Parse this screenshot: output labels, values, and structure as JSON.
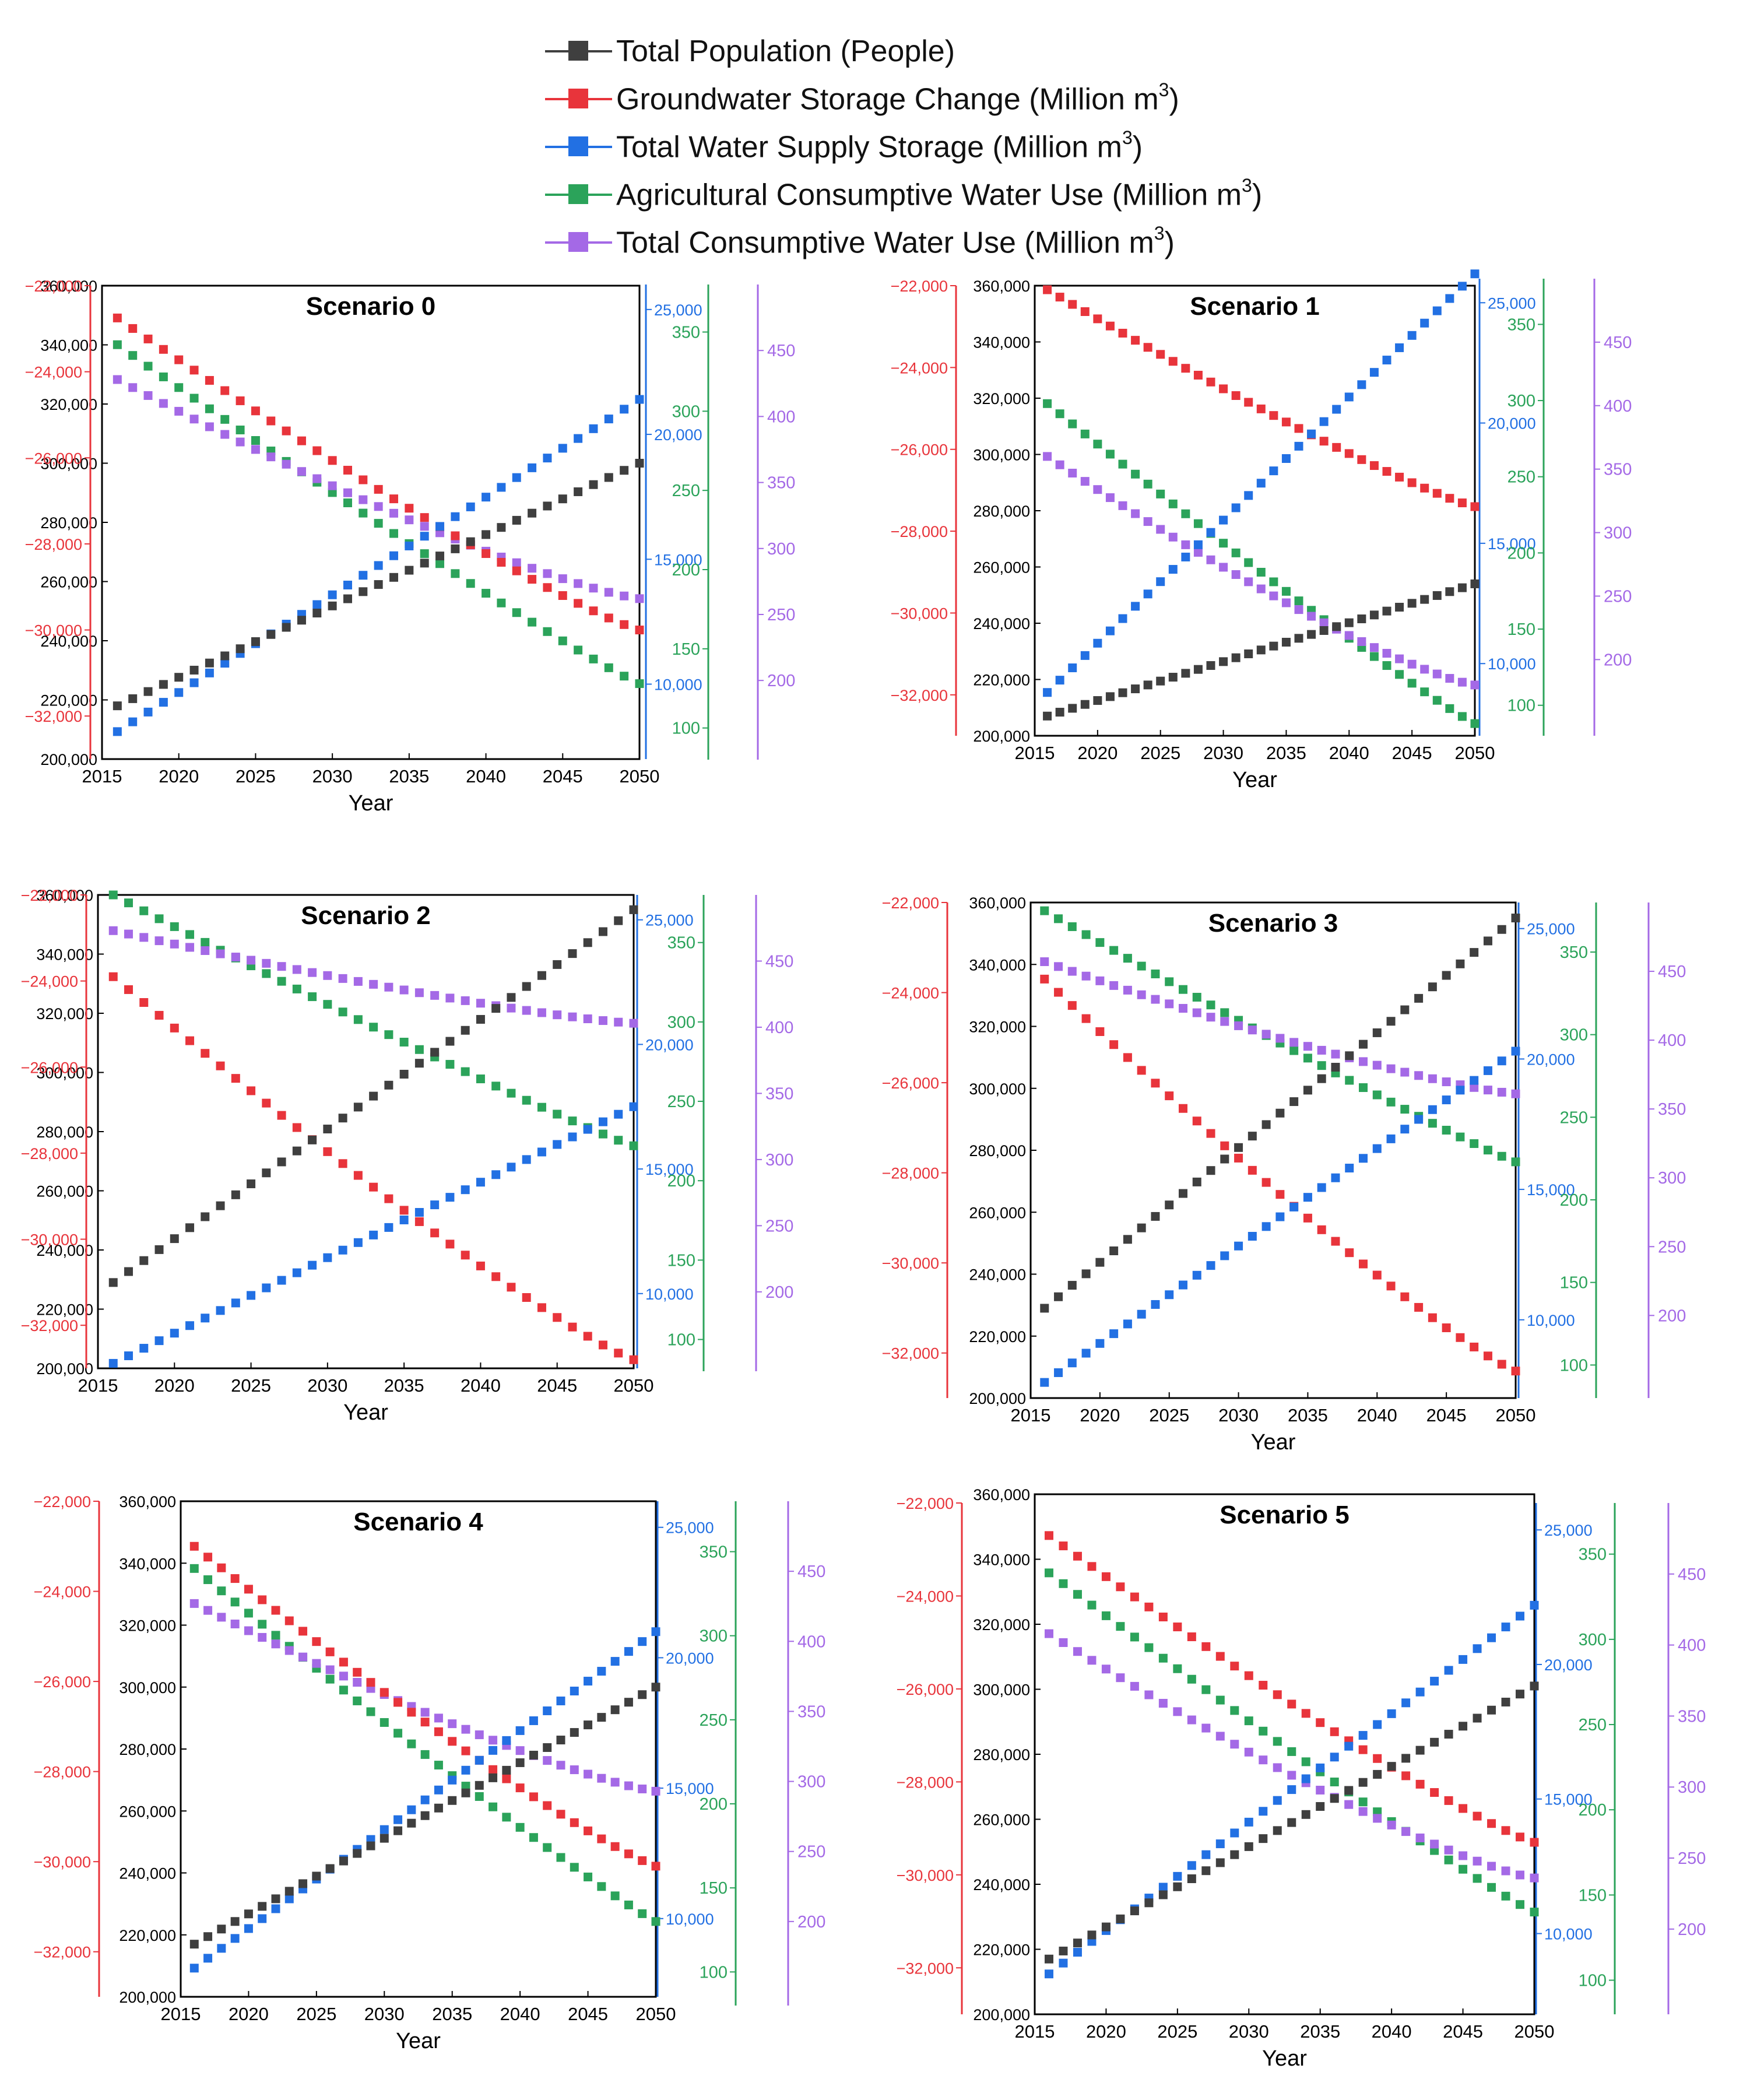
{
  "colors": {
    "population": "#3f3f3f",
    "groundwater": "#e8343b",
    "supply": "#2270e3",
    "agricultural": "#2ba35a",
    "consumptive": "#a469e6",
    "frame": "#000000"
  },
  "legend": [
    {
      "key": "population",
      "label": "Total Population (People)",
      "superscript": ""
    },
    {
      "key": "groundwater",
      "label": "Groundwater Storage Change (Million m",
      "superscript": "3",
      "suffix": ")"
    },
    {
      "key": "supply",
      "label": "Total Water Supply Storage (Million m",
      "superscript": "3",
      "suffix": ")"
    },
    {
      "key": "agricultural",
      "label": "Agricultural Consumptive Water Use (Million m",
      "superscript": "3",
      "suffix": ")"
    },
    {
      "key": "consumptive",
      "label": "Total Consumptive Water Use (Million m",
      "superscript": "3",
      "suffix": ")"
    }
  ],
  "chart_data": [
    {
      "type": "scatter",
      "title": "Scenario 0",
      "xlabel": "Year",
      "xlim": [
        2015,
        2050
      ],
      "x_ticks": [
        "2015",
        "2020",
        "2025",
        "2030",
        "2035",
        "2040",
        "2045",
        "2050"
      ],
      "axes": {
        "groundwater": {
          "range": [
            -33000,
            -22000
          ],
          "ticks": [
            "−22,000",
            "−24,000",
            "−26,000",
            "−28,000",
            "−30,000",
            "−32,000"
          ]
        },
        "population": {
          "range": [
            200000,
            360000
          ],
          "ticks": [
            "360,000",
            "340,000",
            "320,000",
            "300,000",
            "280,000",
            "260,000",
            "240,000",
            "220,000",
            "200,000"
          ]
        },
        "supply": {
          "range": [
            7000,
            26000
          ],
          "ticks": [
            "25,000",
            "20,000",
            "15,000",
            "10,000"
          ]
        },
        "agricultural": {
          "range": [
            80,
            380
          ],
          "ticks": [
            "350",
            "300",
            "250",
            "200",
            "150",
            "100"
          ]
        },
        "consumptive": {
          "range": [
            140,
            500
          ],
          "ticks": [
            "450",
            "400",
            "350",
            "300",
            "250",
            "200"
          ]
        }
      },
      "series": [
        {
          "key": "population",
          "start": 218000,
          "end": 300000
        },
        {
          "key": "groundwater",
          "start": -22750,
          "end": -30000
        },
        {
          "key": "supply",
          "start": 8100,
          "end": 21400
        },
        {
          "key": "agricultural",
          "start": 342,
          "end": 128
        },
        {
          "key": "consumptive",
          "start": 428,
          "end": 262
        }
      ]
    },
    {
      "type": "scatter",
      "title": "Scenario 1",
      "xlabel": "Year",
      "xlim": [
        2015,
        2050
      ],
      "x_ticks": [
        "2015",
        "2020",
        "2025",
        "2030",
        "2035",
        "2040",
        "2045",
        "2050"
      ],
      "axes": {
        "groundwater": {
          "range": [
            -33000,
            -22000
          ],
          "ticks": [
            "−22,000",
            "−24,000",
            "−26,000",
            "−28,000",
            "−30,000",
            "−32,000"
          ]
        },
        "population": {
          "range": [
            200000,
            360000
          ],
          "ticks": [
            "360,000",
            "340,000",
            "320,000",
            "300,000",
            "280,000",
            "260,000",
            "240,000",
            "220,000",
            "200,000"
          ]
        },
        "supply": {
          "range": [
            7000,
            26000
          ],
          "ticks": [
            "25,000",
            "20,000",
            "15,000",
            "10,000"
          ]
        },
        "agricultural": {
          "range": [
            80,
            380
          ],
          "ticks": [
            "350",
            "300",
            "250",
            "200",
            "150",
            "100"
          ]
        },
        "consumptive": {
          "range": [
            140,
            500
          ],
          "ticks": [
            "450",
            "400",
            "350",
            "300",
            "250",
            "200"
          ]
        }
      },
      "series": [
        {
          "key": "population",
          "start": 207000,
          "end": 254000
        },
        {
          "key": "groundwater",
          "start": -22100,
          "end": -27400
        },
        {
          "key": "supply",
          "start": 8800,
          "end": 26200
        },
        {
          "key": "agricultural",
          "start": 298,
          "end": 88
        },
        {
          "key": "consumptive",
          "start": 360,
          "end": 180
        }
      ]
    },
    {
      "type": "scatter",
      "title": "Scenario 2",
      "xlabel": "Year",
      "xlim": [
        2015,
        2050
      ],
      "x_ticks": [
        "2015",
        "2020",
        "2025",
        "2030",
        "2035",
        "2040",
        "2045",
        "2050"
      ],
      "axes": {
        "groundwater": {
          "range": [
            -33000,
            -22000
          ],
          "ticks": [
            "−22,000",
            "−24,000",
            "−26,000",
            "−28,000",
            "−30,000",
            "−32,000"
          ]
        },
        "population": {
          "range": [
            200000,
            360000
          ],
          "ticks": [
            "360,000",
            "340,000",
            "320,000",
            "300,000",
            "280,000",
            "260,000",
            "240,000",
            "220,000",
            "200,000"
          ]
        },
        "supply": {
          "range": [
            7000,
            26000
          ],
          "ticks": [
            "25,000",
            "20,000",
            "15,000",
            "10,000"
          ]
        },
        "agricultural": {
          "range": [
            80,
            380
          ],
          "ticks": [
            "350",
            "300",
            "250",
            "200",
            "150",
            "100"
          ]
        },
        "consumptive": {
          "range": [
            140,
            500
          ],
          "ticks": [
            "450",
            "400",
            "350",
            "300",
            "250",
            "200"
          ]
        }
      },
      "series": [
        {
          "key": "population",
          "start": 229000,
          "end": 355000
        },
        {
          "key": "groundwater",
          "start": -23900,
          "end": -32800
        },
        {
          "key": "supply",
          "start": 7200,
          "end": 17500
        },
        {
          "key": "agricultural",
          "start": 380,
          "end": 222
        },
        {
          "key": "consumptive",
          "start": 473,
          "end": 403
        }
      ]
    },
    {
      "type": "scatter",
      "title": "Scenario 3",
      "xlabel": "Year",
      "xlim": [
        2015,
        2050
      ],
      "x_ticks": [
        "2015",
        "2020",
        "2025",
        "2030",
        "2035",
        "2040",
        "2045",
        "2050"
      ],
      "axes": {
        "groundwater": {
          "range": [
            -33000,
            -22000
          ],
          "ticks": [
            "−22,000",
            "−24,000",
            "−26,000",
            "−28,000",
            "−30,000",
            "−32,000"
          ]
        },
        "population": {
          "range": [
            200000,
            360000
          ],
          "ticks": [
            "360,000",
            "340,000",
            "320,000",
            "300,000",
            "280,000",
            "260,000",
            "240,000",
            "220,000",
            "200,000"
          ]
        },
        "supply": {
          "range": [
            7000,
            26000
          ],
          "ticks": [
            "25,000",
            "20,000",
            "15,000",
            "10,000"
          ]
        },
        "agricultural": {
          "range": [
            80,
            380
          ],
          "ticks": [
            "350",
            "300",
            "250",
            "200",
            "150",
            "100"
          ]
        },
        "consumptive": {
          "range": [
            140,
            500
          ],
          "ticks": [
            "450",
            "400",
            "350",
            "300",
            "250",
            "200"
          ]
        }
      },
      "series": [
        {
          "key": "population",
          "start": 229000,
          "end": 355000
        },
        {
          "key": "groundwater",
          "start": -23700,
          "end": -32400
        },
        {
          "key": "supply",
          "start": 7600,
          "end": 20300
        },
        {
          "key": "agricultural",
          "start": 375,
          "end": 223
        },
        {
          "key": "consumptive",
          "start": 457,
          "end": 361
        }
      ]
    },
    {
      "type": "scatter",
      "title": "Scenario 4",
      "xlabel": "Year",
      "xlim": [
        2015,
        2050
      ],
      "x_ticks": [
        "2015",
        "2020",
        "2025",
        "2030",
        "2035",
        "2040",
        "2045",
        "2050"
      ],
      "axes": {
        "groundwater": {
          "range": [
            -33000,
            -22000
          ],
          "ticks": [
            "−22,000",
            "−24,000",
            "−26,000",
            "−28,000",
            "−30,000",
            "−32,000"
          ]
        },
        "population": {
          "range": [
            200000,
            360000
          ],
          "ticks": [
            "360,000",
            "340,000",
            "320,000",
            "300,000",
            "280,000",
            "260,000",
            "240,000",
            "220,000",
            "200,000"
          ]
        },
        "supply": {
          "range": [
            7000,
            26000
          ],
          "ticks": [
            "25,000",
            "20,000",
            "15,000",
            "10,000"
          ]
        },
        "agricultural": {
          "range": [
            80,
            380
          ],
          "ticks": [
            "350",
            "300",
            "250",
            "200",
            "150",
            "100"
          ]
        },
        "consumptive": {
          "range": [
            140,
            500
          ],
          "ticks": [
            "450",
            "400",
            "350",
            "300",
            "250",
            "200"
          ]
        }
      },
      "series": [
        {
          "key": "population",
          "start": 217000,
          "end": 300000
        },
        {
          "key": "groundwater",
          "start": -23000,
          "end": -30100
        },
        {
          "key": "supply",
          "start": 8100,
          "end": 21000
        },
        {
          "key": "agricultural",
          "start": 340,
          "end": 130
        },
        {
          "key": "consumptive",
          "start": 427,
          "end": 293
        }
      ]
    },
    {
      "type": "scatter",
      "title": "Scenario 5",
      "xlabel": "Year",
      "xlim": [
        2015,
        2050
      ],
      "x_ticks": [
        "2015",
        "2020",
        "2025",
        "2030",
        "2035",
        "2040",
        "2045",
        "2050"
      ],
      "axes": {
        "groundwater": {
          "range": [
            -33000,
            -22000
          ],
          "ticks": [
            "−22,000",
            "−24,000",
            "−26,000",
            "−28,000",
            "−30,000",
            "−32,000"
          ]
        },
        "population": {
          "range": [
            200000,
            360000
          ],
          "ticks": [
            "360,000",
            "340,000",
            "320,000",
            "300,000",
            "280,000",
            "260,000",
            "240,000",
            "220,000",
            "200,000"
          ]
        },
        "supply": {
          "range": [
            7000,
            26000
          ],
          "ticks": [
            "25,000",
            "20,000",
            "15,000",
            "10,000"
          ]
        },
        "agricultural": {
          "range": [
            80,
            380
          ],
          "ticks": [
            "350",
            "300",
            "250",
            "200",
            "150",
            "100"
          ]
        },
        "consumptive": {
          "range": [
            140,
            500
          ],
          "ticks": [
            "450",
            "400",
            "350",
            "300",
            "250",
            "200"
          ]
        }
      },
      "series": [
        {
          "key": "population",
          "start": 217000,
          "end": 301000
        },
        {
          "key": "groundwater",
          "start": -22700,
          "end": -29300
        },
        {
          "key": "supply",
          "start": 8500,
          "end": 22200
        },
        {
          "key": "agricultural",
          "start": 339,
          "end": 140
        },
        {
          "key": "consumptive",
          "start": 408,
          "end": 236
        }
      ]
    }
  ]
}
